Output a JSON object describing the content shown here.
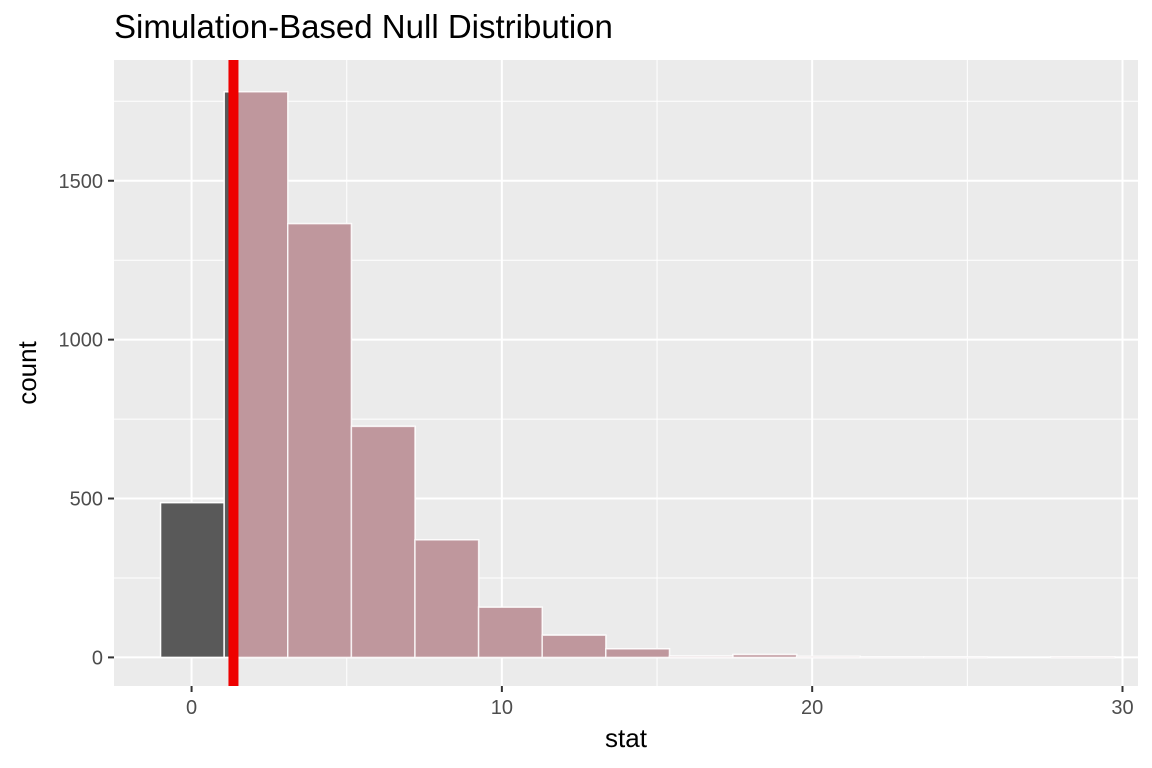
{
  "chart_data": {
    "type": "bar",
    "title": "Simulation-Based Null Distribution",
    "xlabel": "stat",
    "ylabel": "count",
    "xlim": [
      -2.5,
      30.5
    ],
    "ylim": [
      -90,
      1880
    ],
    "x_ticks": [
      0,
      10,
      20,
      30
    ],
    "y_ticks": [
      0,
      500,
      1000,
      1500
    ],
    "bins": [
      {
        "x0": -1.0,
        "x1": 1.05,
        "count": 487
      },
      {
        "x0": 1.05,
        "x1": 3.1,
        "count": 1780
      },
      {
        "x0": 3.1,
        "x1": 5.15,
        "count": 1365
      },
      {
        "x0": 5.15,
        "x1": 7.2,
        "count": 727
      },
      {
        "x0": 7.2,
        "x1": 9.25,
        "count": 370
      },
      {
        "x0": 9.25,
        "x1": 11.3,
        "count": 158
      },
      {
        "x0": 11.3,
        "x1": 13.35,
        "count": 70
      },
      {
        "x0": 13.35,
        "x1": 15.4,
        "count": 27
      },
      {
        "x0": 15.4,
        "x1": 17.45,
        "count": 4
      },
      {
        "x0": 17.45,
        "x1": 19.5,
        "count": 9
      },
      {
        "x0": 19.5,
        "x1": 21.55,
        "count": 3
      },
      {
        "x0": 21.55,
        "x1": 23.6,
        "count": 1
      },
      {
        "x0": 23.6,
        "x1": 25.65,
        "count": 1
      },
      {
        "x0": 25.65,
        "x1": 27.7,
        "count": 0
      },
      {
        "x0": 27.7,
        "x1": 29.75,
        "count": 2
      }
    ],
    "observed_stat": 1.35,
    "shade_direction": "greater",
    "colors": {
      "panel": "#ebebeb",
      "grid": "#ffffff",
      "bar_fill": "#595959",
      "shade_fill": "#bf979d",
      "bar_outline": "#ffffff",
      "observed_line": "#ee0000"
    }
  }
}
